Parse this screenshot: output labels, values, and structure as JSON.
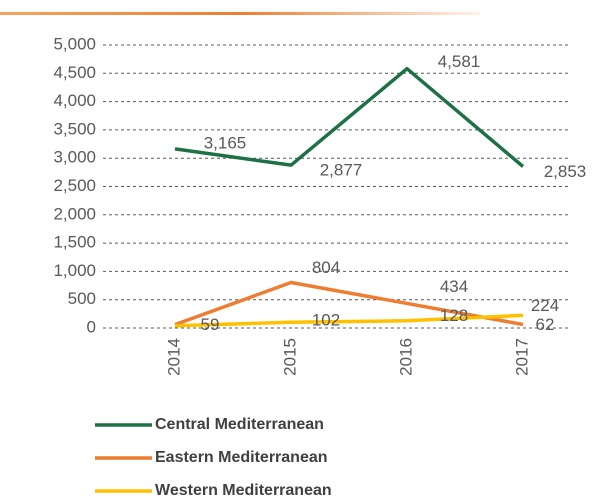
{
  "chart_data": {
    "type": "line",
    "categories": [
      "2014",
      "2015",
      "2016",
      "2017"
    ],
    "series": [
      {
        "name": "Central Mediterranean",
        "color": "#1e7145",
        "values": [
          3165,
          2877,
          4581,
          2853
        ],
        "value_labels": [
          "3,165",
          "2,877",
          "4,581",
          "2,853"
        ]
      },
      {
        "name": "Eastern Mediterranean",
        "color": "#ed7d31",
        "values": [
          59,
          804,
          434,
          62
        ]
      },
      {
        "name": "Western Mediterranean",
        "color": "#ffc000",
        "values": [
          40,
          102,
          128,
          224
        ],
        "value_labels": [
          null,
          "102",
          "128",
          "224"
        ]
      }
    ],
    "ylim": [
      0,
      5000
    ],
    "yticks": [
      0,
      500,
      {
        "value": 1000,
        "label": "1,000"
      },
      {
        "value": 1500,
        "label": "1,500"
      },
      {
        "value": 2000,
        "label": "2,000"
      },
      {
        "value": 2500,
        "label": "2,500"
      },
      {
        "value": 3000,
        "label": "3,000"
      },
      {
        "value": 3500,
        "label": "3,500"
      },
      {
        "value": 4000,
        "label": "4,000"
      },
      {
        "value": 4500,
        "label": "4,500"
      },
      {
        "value": 5000,
        "label": "5,000"
      }
    ],
    "grid": true,
    "legend": "bottom"
  }
}
